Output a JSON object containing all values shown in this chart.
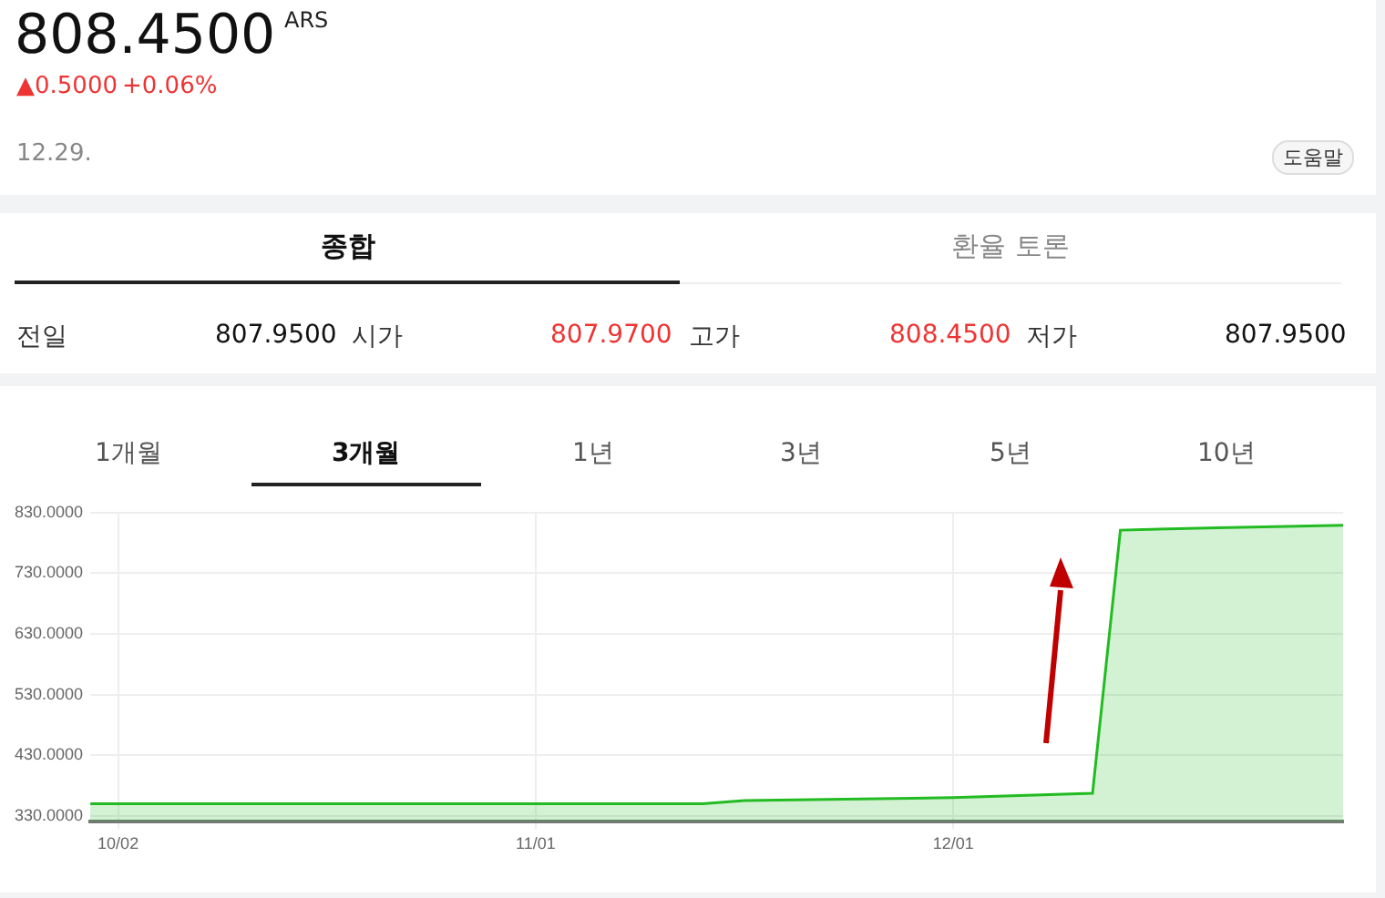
{
  "chart_data": {
    "type": "area",
    "title": "808.4500",
    "annotations": [
      "ARS",
      "▲0.5000",
      "+0.06%",
      "12.29.",
      "도움말",
      "종합",
      "환율 토론",
      "전일",
      "807.9500",
      "시가",
      "807.9700",
      "고가",
      "808.4500",
      "저가",
      "807.9500",
      "1개월",
      "3개월",
      "1년",
      "3년",
      "5년",
      "10년"
    ],
    "x": [
      "--09-30",
      "--10-15",
      "--11-01",
      "--11-13",
      "--11-16",
      "--12-01",
      "--12-11",
      "--12-13",
      "--12-20",
      "--12-29"
    ],
    "series": [
      {
        "color": "#22bb22",
        "values": [
          350,
          350,
          350,
          350,
          355,
          360,
          367,
          801,
          805,
          809
        ]
      }
    ],
    "xlim": [
      "--09-30",
      "--12-29"
    ],
    "xticks": [
      {
        "value": "--10-02",
        "label": "10/02"
      },
      {
        "value": "--11-01",
        "label": "11/01"
      },
      {
        "value": "--12-01",
        "label": "12/01"
      }
    ],
    "ylim": [
      320,
      830
    ],
    "yticks": [
      {
        "value": 330,
        "label": "330.0000"
      },
      {
        "value": 430,
        "label": "430.0000"
      },
      {
        "value": 530,
        "label": "530.0000"
      },
      {
        "value": 630,
        "label": "630.0000"
      },
      {
        "value": 730,
        "label": "730.0000"
      },
      {
        "value": 830,
        "label": "830.0000"
      }
    ],
    "grid": true
  }
}
